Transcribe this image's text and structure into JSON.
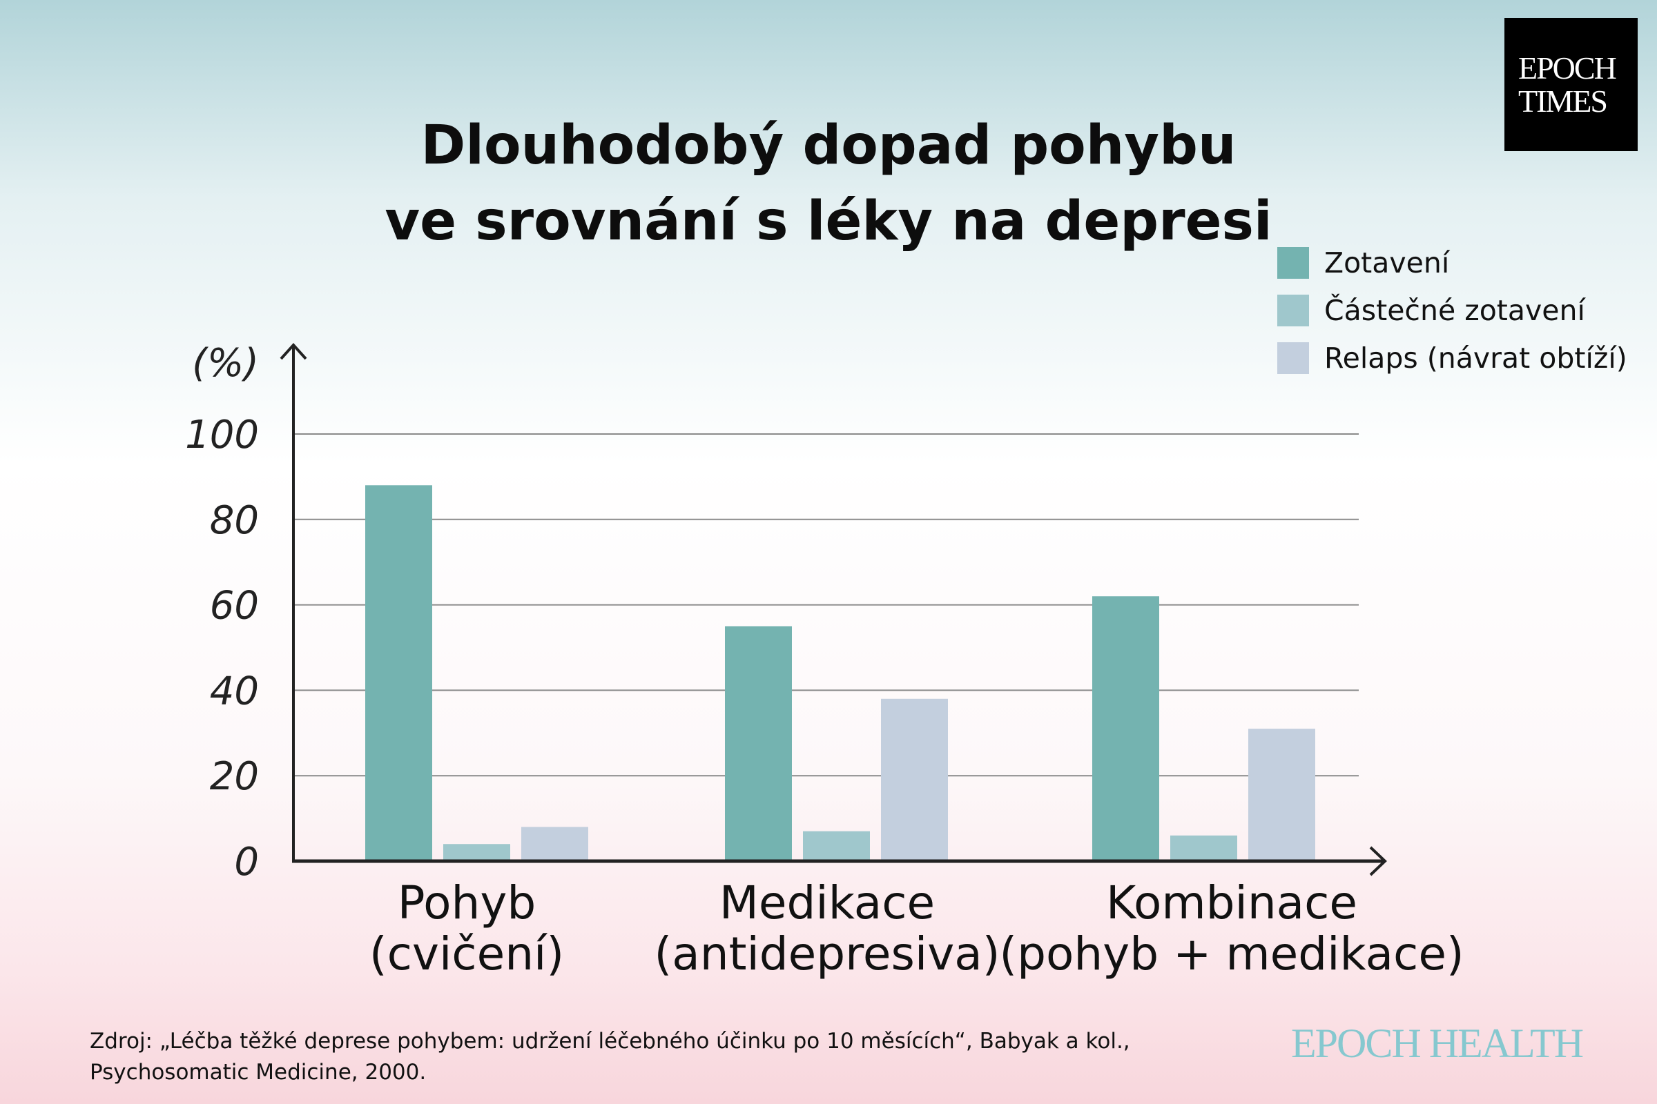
{
  "title": {
    "line1": "Dlouhodobý dopad pohybu",
    "line2": "ve srovnání s léky na depresi"
  },
  "logo": {
    "line1": "EPOCH",
    "line2": "TIMES"
  },
  "footer_logo": "EPOCH HEALTH",
  "source": {
    "line1": "Zdroj: „Léčba těžké deprese pohybem: udržení léčebného účinku po 10 měsících“, Babyak a kol.,",
    "line2": "Psychosomatic Medicine, 2000."
  },
  "colors": {
    "zotaveni": "#74b3b0",
    "castecne": "#9fc7cc",
    "relaps": "#c3cfde"
  },
  "chart_data": {
    "type": "bar",
    "title": "Dlouhodobý dopad pohybu ve srovnání s léky na depresi",
    "ylabel": "(%)",
    "xlabel": "",
    "ylim": [
      0,
      100
    ],
    "yticks": [
      "0",
      "20",
      "40",
      "60",
      "80",
      "100"
    ],
    "grid": true,
    "legend_position": "top-right",
    "categories": [
      {
        "line1": "Pohyb",
        "line2": "(cvičení)"
      },
      {
        "line1": "Medikace",
        "line2": "(antidepresiva)"
      },
      {
        "line1": "Kombinace",
        "line2": "(pohyb + medikace)"
      }
    ],
    "series": [
      {
        "name": "Zotavení",
        "values": [
          88,
          55,
          62
        ]
      },
      {
        "name": "Částečné zotavení",
        "values": [
          4,
          7,
          6
        ]
      },
      {
        "name": "Relaps (návrat obtíží)",
        "values": [
          8,
          38,
          31
        ]
      }
    ]
  }
}
